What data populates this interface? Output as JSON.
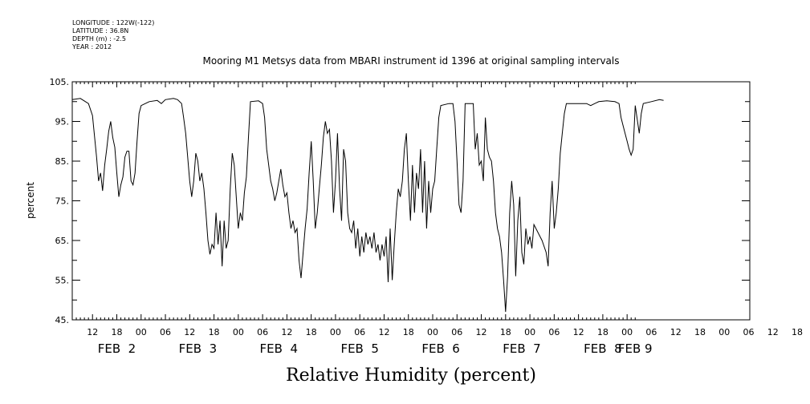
{
  "header": {
    "meta": [
      "LONGITUDE : 122W(-122)",
      "LATITUDE : 36.8N",
      "DEPTH (m) : -2.5",
      "YEAR : 2012"
    ]
  },
  "chart_data": {
    "type": "line",
    "title": "Mooring M1 Metsys data from MBARI instrument id 1396 at original sampling intervals",
    "xlabel": "Relative Humidity (percent)",
    "ylabel": "percent",
    "ylim": [
      45,
      105
    ],
    "yticks": [
      "45.",
      "55.",
      "65.",
      "75.",
      "85.",
      "95.",
      "105."
    ],
    "xlim_hours": [
      31,
      170
    ],
    "hour_tick_labels": [
      "12",
      "18",
      "00",
      "06",
      "12",
      "18",
      "00",
      "06",
      "12",
      "18",
      "00",
      "06",
      "12",
      "18",
      "00",
      "06",
      "12",
      "18",
      "00",
      "06",
      "12",
      "18",
      "00",
      "06",
      "12",
      "18",
      "00",
      "06",
      "12",
      "18",
      "00"
    ],
    "day_labels": [
      {
        "label": "FEB  2",
        "hour": 42
      },
      {
        "label": "FEB  3",
        "hour": 62
      },
      {
        "label": "FEB  4",
        "hour": 82
      },
      {
        "label": "FEB  5",
        "hour": 102
      },
      {
        "label": "FEB  6",
        "hour": 122
      },
      {
        "label": "FEB  7",
        "hour": 142
      },
      {
        "label": "FEB  8",
        "hour": 162
      },
      {
        "label": "FEB 9",
        "hour": 170
      }
    ],
    "series": [
      {
        "color": "#000000",
        "points": [
          [
            31.0,
            100.5
          ],
          [
            33.0,
            100.8
          ],
          [
            35.0,
            99.5
          ],
          [
            36.0,
            96.5
          ],
          [
            37.0,
            86.0
          ],
          [
            37.5,
            80.0
          ],
          [
            38.0,
            82.0
          ],
          [
            38.5,
            77.5
          ],
          [
            39.0,
            84.0
          ],
          [
            39.5,
            88.0
          ],
          [
            40.0,
            92.5
          ],
          [
            40.5,
            95.0
          ],
          [
            41.0,
            91.0
          ],
          [
            41.5,
            88.5
          ],
          [
            42.0,
            82.0
          ],
          [
            42.5,
            76.0
          ],
          [
            43.0,
            79.0
          ],
          [
            43.5,
            81.0
          ],
          [
            44.0,
            86.0
          ],
          [
            44.5,
            87.5
          ],
          [
            45.0,
            87.5
          ],
          [
            45.5,
            80.0
          ],
          [
            46.0,
            79.0
          ],
          [
            46.5,
            82.0
          ],
          [
            47.0,
            90.0
          ],
          [
            47.5,
            97.0
          ],
          [
            48.0,
            99.0
          ],
          [
            50.0,
            100.0
          ],
          [
            52.0,
            100.3
          ],
          [
            53.0,
            99.5
          ],
          [
            54.0,
            100.5
          ],
          [
            56.0,
            100.8
          ],
          [
            57.0,
            100.5
          ],
          [
            58.0,
            99.5
          ],
          [
            58.5,
            96.0
          ],
          [
            59.0,
            92.0
          ],
          [
            59.5,
            86.0
          ],
          [
            60.0,
            80.0
          ],
          [
            60.5,
            76.0
          ],
          [
            61.0,
            80.0
          ],
          [
            61.5,
            87.0
          ],
          [
            62.0,
            85.0
          ],
          [
            62.5,
            80.0
          ],
          [
            63.0,
            82.0
          ],
          [
            63.5,
            78.0
          ],
          [
            64.0,
            72.0
          ],
          [
            64.5,
            65.0
          ],
          [
            65.0,
            61.5
          ],
          [
            65.5,
            64.0
          ],
          [
            66.0,
            63.0
          ],
          [
            66.5,
            72.0
          ],
          [
            67.0,
            64.0
          ],
          [
            67.5,
            70.0
          ],
          [
            68.0,
            58.5
          ],
          [
            68.5,
            70.0
          ],
          [
            69.0,
            63.0
          ],
          [
            69.5,
            65.0
          ],
          [
            70.0,
            78.0
          ],
          [
            70.5,
            87.0
          ],
          [
            71.0,
            84.0
          ],
          [
            71.5,
            76.0
          ],
          [
            72.0,
            68.0
          ],
          [
            72.5,
            72.0
          ],
          [
            73.0,
            70.0
          ],
          [
            73.5,
            77.0
          ],
          [
            74.0,
            81.0
          ],
          [
            74.5,
            91.0
          ],
          [
            75.0,
            100.0
          ],
          [
            77.0,
            100.2
          ],
          [
            78.0,
            99.5
          ],
          [
            78.5,
            96.0
          ],
          [
            79.0,
            88.0
          ],
          [
            79.5,
            84.0
          ],
          [
            80.0,
            80.0
          ],
          [
            80.5,
            78.0
          ],
          [
            81.0,
            75.0
          ],
          [
            81.5,
            77.0
          ],
          [
            82.0,
            80.0
          ],
          [
            82.5,
            83.0
          ],
          [
            83.0,
            79.0
          ],
          [
            83.5,
            76.0
          ],
          [
            84.0,
            77.0
          ],
          [
            84.5,
            72.0
          ],
          [
            85.0,
            68.0
          ],
          [
            85.5,
            70.0
          ],
          [
            86.0,
            67.0
          ],
          [
            86.5,
            68.0
          ],
          [
            87.0,
            60.0
          ],
          [
            87.5,
            55.5
          ],
          [
            88.0,
            62.0
          ],
          [
            88.5,
            68.0
          ],
          [
            89.0,
            73.0
          ],
          [
            89.5,
            82.0
          ],
          [
            90.0,
            90.0
          ],
          [
            90.5,
            80.0
          ],
          [
            91.0,
            68.0
          ],
          [
            91.5,
            72.0
          ],
          [
            92.0,
            78.0
          ],
          [
            92.5,
            84.0
          ],
          [
            93.0,
            91.0
          ],
          [
            93.5,
            95.0
          ],
          [
            94.0,
            92.0
          ],
          [
            94.5,
            93.0
          ],
          [
            95.0,
            85.0
          ],
          [
            95.5,
            72.0
          ],
          [
            96.0,
            80.0
          ],
          [
            96.5,
            92.0
          ],
          [
            97.0,
            78.0
          ],
          [
            97.5,
            70.0
          ],
          [
            98.0,
            88.0
          ],
          [
            98.5,
            85.0
          ],
          [
            99.0,
            72.0
          ],
          [
            99.5,
            68.0
          ],
          [
            100.0,
            67.0
          ],
          [
            100.5,
            70.0
          ],
          [
            101.0,
            63.0
          ],
          [
            101.5,
            68.0
          ],
          [
            102.0,
            61.0
          ],
          [
            102.5,
            66.0
          ],
          [
            103.0,
            62.0
          ],
          [
            103.5,
            67.0
          ],
          [
            104.0,
            64.0
          ],
          [
            104.5,
            66.0
          ],
          [
            105.0,
            63.0
          ],
          [
            105.5,
            67.0
          ],
          [
            106.0,
            62.0
          ],
          [
            106.5,
            64.0
          ],
          [
            107.0,
            60.0
          ],
          [
            107.5,
            64.0
          ],
          [
            108.0,
            61.0
          ],
          [
            108.5,
            66.0
          ],
          [
            109.0,
            54.5
          ],
          [
            109.5,
            68.0
          ],
          [
            110.0,
            55.0
          ],
          [
            110.5,
            64.0
          ],
          [
            111.0,
            72.0
          ],
          [
            111.5,
            78.0
          ],
          [
            112.0,
            76.0
          ],
          [
            112.5,
            80.0
          ],
          [
            113.0,
            88.0
          ],
          [
            113.5,
            92.0
          ],
          [
            114.0,
            80.0
          ],
          [
            114.5,
            70.0
          ],
          [
            115.0,
            84.0
          ],
          [
            115.5,
            72.0
          ],
          [
            116.0,
            82.0
          ],
          [
            116.5,
            78.0
          ],
          [
            117.0,
            88.0
          ],
          [
            117.5,
            72.0
          ],
          [
            118.0,
            85.0
          ],
          [
            118.5,
            68.0
          ],
          [
            119.0,
            80.0
          ],
          [
            119.5,
            72.0
          ],
          [
            120.0,
            78.0
          ],
          [
            120.5,
            80.0
          ],
          [
            121.0,
            88.0
          ],
          [
            121.5,
            96.0
          ],
          [
            122.0,
            99.0
          ],
          [
            124.0,
            99.5
          ],
          [
            125.0,
            99.5
          ],
          [
            125.5,
            95.0
          ],
          [
            126.0,
            85.0
          ],
          [
            126.5,
            74.0
          ],
          [
            127.0,
            72.0
          ],
          [
            127.5,
            80.0
          ],
          [
            128.0,
            99.5
          ],
          [
            130.0,
            99.5
          ],
          [
            130.5,
            88.0
          ],
          [
            131.0,
            92.0
          ],
          [
            131.5,
            84.0
          ],
          [
            132.0,
            85.0
          ],
          [
            132.5,
            80.0
          ],
          [
            133.0,
            96.0
          ],
          [
            133.5,
            88.0
          ],
          [
            134.0,
            86.0
          ],
          [
            134.5,
            85.0
          ],
          [
            135.0,
            80.0
          ],
          [
            135.5,
            72.0
          ],
          [
            136.0,
            68.0
          ],
          [
            136.5,
            66.0
          ],
          [
            137.0,
            62.0
          ],
          [
            137.5,
            55.0
          ],
          [
            138.0,
            47.0
          ],
          [
            138.5,
            56.0
          ],
          [
            139.0,
            72.0
          ],
          [
            139.5,
            80.0
          ],
          [
            140.0,
            74.0
          ],
          [
            140.5,
            56.0
          ],
          [
            141.0,
            70.0
          ],
          [
            141.5,
            76.0
          ],
          [
            142.0,
            62.0
          ],
          [
            142.5,
            59.0
          ],
          [
            143.0,
            68.0
          ],
          [
            143.5,
            64.0
          ],
          [
            144.0,
            66.0
          ],
          [
            144.5,
            63.0
          ],
          [
            145.0,
            69.0
          ],
          [
            147.0,
            65.0
          ],
          [
            148.0,
            62.0
          ],
          [
            148.5,
            58.5
          ],
          [
            149.0,
            72.0
          ],
          [
            149.5,
            80.0
          ],
          [
            150.0,
            68.0
          ],
          [
            150.5,
            72.0
          ],
          [
            151.0,
            78.0
          ],
          [
            151.5,
            87.0
          ],
          [
            152.0,
            92.0
          ],
          [
            152.5,
            97.0
          ],
          [
            153.0,
            99.5
          ],
          [
            156.0,
            99.5
          ],
          [
            157.0,
            99.5
          ],
          [
            158.0,
            99.5
          ],
          [
            159.0,
            99.0
          ],
          [
            160.0,
            99.5
          ],
          [
            161.0,
            100.0
          ],
          [
            163.0,
            100.2
          ],
          [
            165.0,
            100.0
          ],
          [
            166.0,
            99.5
          ],
          [
            166.5,
            96.0
          ],
          [
            167.0,
            94.0
          ],
          [
            167.5,
            92.0
          ],
          [
            168.0,
            90.0
          ],
          [
            168.5,
            88.0
          ],
          [
            169.0,
            86.5
          ],
          [
            169.5,
            88.0
          ],
          [
            170.0,
            99.0
          ],
          [
            171.0,
            92.0
          ],
          [
            171.5,
            97.0
          ],
          [
            172.0,
            99.5
          ],
          [
            174.0,
            100.0
          ],
          [
            176.0,
            100.5
          ],
          [
            177.0,
            100.3
          ]
        ]
      }
    ]
  }
}
